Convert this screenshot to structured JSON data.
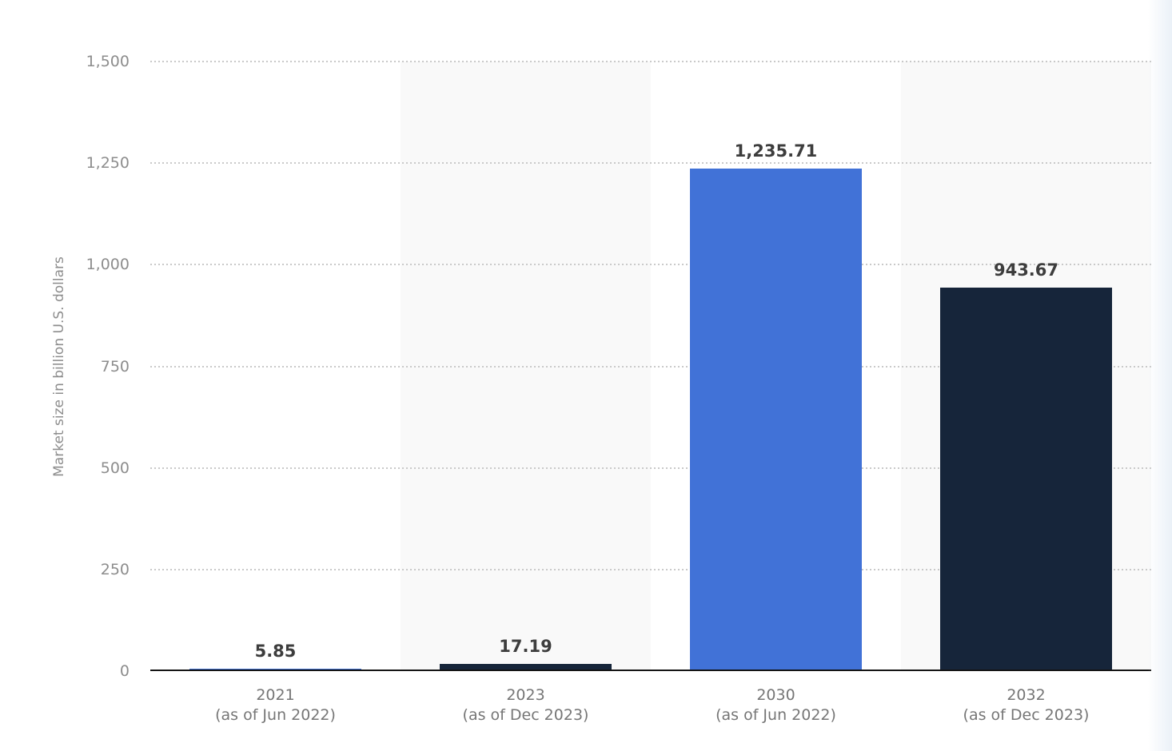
{
  "page": {
    "background": "#ffffff"
  },
  "chart_data": {
    "type": "bar",
    "title": "",
    "ylabel": "Market size in billion U.S. dollars",
    "ylim": [
      0,
      1500
    ],
    "yticks": [
      0,
      250,
      500,
      750,
      1000,
      1250,
      1500
    ],
    "ytick_labels": [
      "0",
      "250",
      "500",
      "750",
      "1,000",
      "1,250",
      "1,500"
    ],
    "grid": "horizontal-dotted",
    "legend": null,
    "categories": [
      {
        "year": "2021",
        "note": "(as of Jun 2022)"
      },
      {
        "year": "2023",
        "note": "(as of Dec 2023)"
      },
      {
        "year": "2030",
        "note": "(as of Jun 2022)"
      },
      {
        "year": "2032",
        "note": "(as of Dec 2023)"
      }
    ],
    "values": [
      5.85,
      17.19,
      1235.71,
      943.67
    ],
    "value_labels": [
      "5.85",
      "17.19",
      "1,235.71",
      "943.67"
    ],
    "bar_colors": [
      "#4172d7",
      "#16253a",
      "#4172d7",
      "#16253a"
    ],
    "band_colors": [
      "#ffffff",
      "#f9f9f9",
      "#ffffff",
      "#f9f9f9"
    ]
  },
  "colors": {
    "axis_line": "#151515",
    "gridline": "#c9c9c9",
    "tick_label": "#8d8d8d",
    "axis_title": "#8d8d8d",
    "category_label": "#767676",
    "value_label": "#3d3d3d",
    "band_alt": "#f9f9f9",
    "bar_blue": "#4172d7",
    "bar_navy": "#16253a"
  }
}
